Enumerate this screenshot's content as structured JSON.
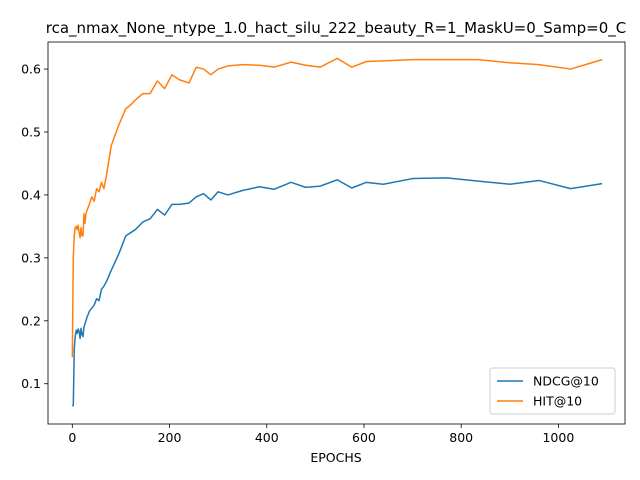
{
  "chart_data": {
    "type": "line",
    "title": "rca_nmax_None_ntype_1.0_hact_silu_222_beauty_R=1_MaskU=0_Samp=0_C",
    "xlabel": "EPOCHS",
    "ylabel": "",
    "xlim": [
      -50,
      1137
    ],
    "ylim": [
      0.036,
      0.643
    ],
    "xticks": [
      0,
      200,
      400,
      600,
      800,
      1000
    ],
    "yticks": [
      0.1,
      0.2,
      0.3,
      0.4,
      0.5,
      0.6
    ],
    "grid": false,
    "legend_position": "lower-right",
    "series": [
      {
        "name": "NDCG@10",
        "color": "#1f77b4",
        "x": [
          0,
          2,
          4,
          6,
          8,
          10,
          12,
          14,
          16,
          18,
          20,
          22,
          24,
          26,
          28,
          30,
          35,
          40,
          45,
          50,
          55,
          60,
          65,
          70,
          80,
          95,
          110,
          120,
          130,
          145,
          160,
          175,
          190,
          205,
          220,
          240,
          255,
          270,
          285,
          300,
          320,
          350,
          385,
          415,
          450,
          480,
          510,
          545,
          575,
          605,
          640,
          700,
          770,
          835,
          900,
          960,
          1025,
          1090
        ],
        "y": [
          0.065,
          0.065,
          0.155,
          0.175,
          0.185,
          0.18,
          0.187,
          0.183,
          0.172,
          0.188,
          0.178,
          0.175,
          0.19,
          0.195,
          0.2,
          0.205,
          0.215,
          0.22,
          0.225,
          0.235,
          0.232,
          0.25,
          0.255,
          0.262,
          0.28,
          0.305,
          0.335,
          0.34,
          0.345,
          0.357,
          0.362,
          0.377,
          0.368,
          0.385,
          0.385,
          0.387,
          0.397,
          0.402,
          0.392,
          0.405,
          0.4,
          0.407,
          0.413,
          0.409,
          0.42,
          0.412,
          0.414,
          0.424,
          0.411,
          0.42,
          0.417,
          0.426,
          0.427,
          0.422,
          0.417,
          0.423,
          0.41,
          0.418
        ]
      },
      {
        "name": "HIT@10",
        "color": "#ff7f0e",
        "x": [
          0,
          2,
          4,
          6,
          8,
          10,
          12,
          14,
          16,
          18,
          20,
          22,
          24,
          26,
          28,
          30,
          35,
          40,
          45,
          50,
          55,
          60,
          65,
          70,
          80,
          95,
          110,
          120,
          130,
          145,
          160,
          175,
          190,
          205,
          220,
          240,
          255,
          270,
          285,
          300,
          320,
          350,
          385,
          415,
          450,
          480,
          510,
          545,
          575,
          605,
          640,
          700,
          770,
          835,
          900,
          960,
          1025,
          1090
        ],
        "y": [
          0.142,
          0.3,
          0.335,
          0.348,
          0.35,
          0.345,
          0.352,
          0.34,
          0.332,
          0.348,
          0.335,
          0.335,
          0.37,
          0.355,
          0.37,
          0.375,
          0.385,
          0.397,
          0.39,
          0.41,
          0.405,
          0.42,
          0.41,
          0.43,
          0.478,
          0.51,
          0.537,
          0.543,
          0.551,
          0.561,
          0.561,
          0.581,
          0.569,
          0.591,
          0.583,
          0.578,
          0.603,
          0.6,
          0.591,
          0.6,
          0.605,
          0.607,
          0.606,
          0.603,
          0.611,
          0.606,
          0.603,
          0.617,
          0.603,
          0.612,
          0.613,
          0.615,
          0.615,
          0.615,
          0.61,
          0.607,
          0.6,
          0.615
        ]
      }
    ]
  }
}
